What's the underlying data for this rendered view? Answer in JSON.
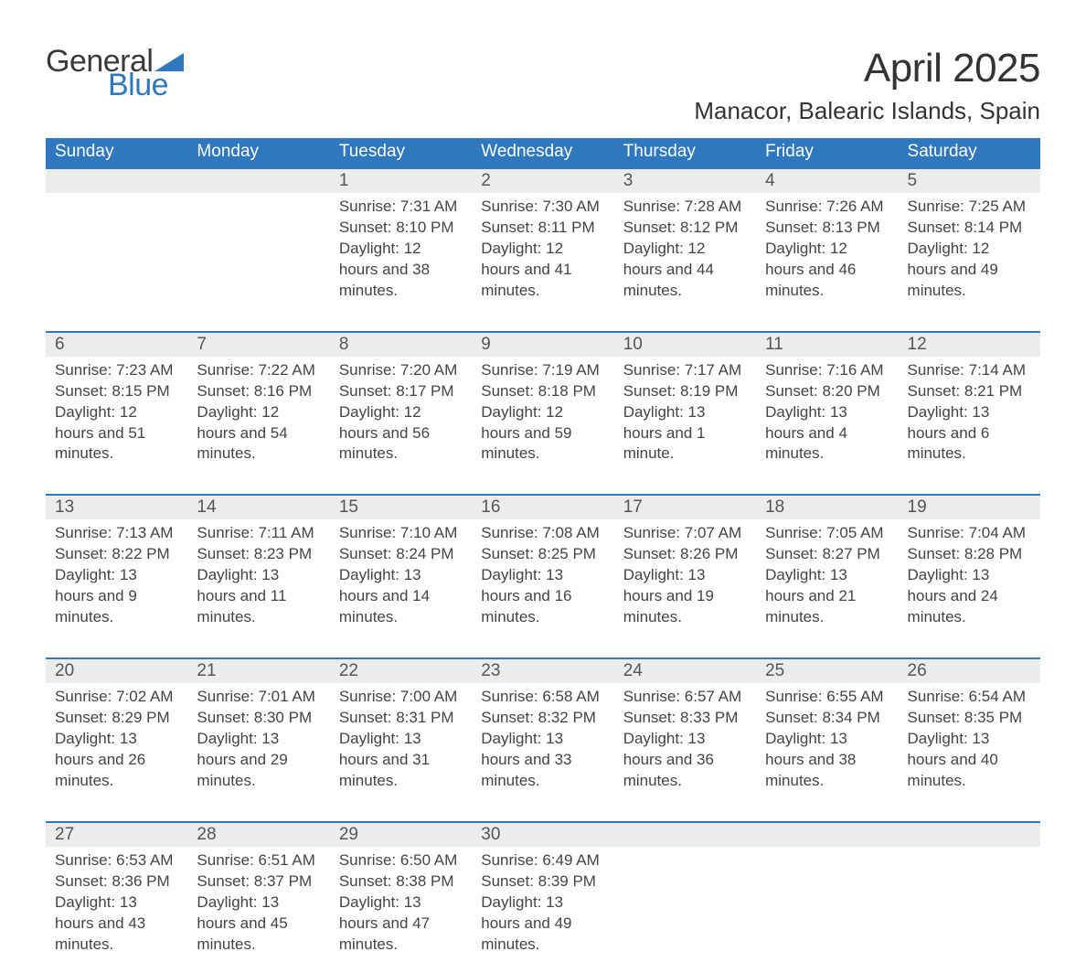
{
  "brand": {
    "word1": "General",
    "word2": "Blue",
    "color1": "#3a3a3a",
    "color2": "#2f78bf"
  },
  "title": "April 2025",
  "location": "Manacor, Balearic Islands, Spain",
  "theme": {
    "header_bg": "#2f78bf",
    "header_fg": "#ffffff",
    "daynum_bg": "#ececec",
    "row_border": "#2f78bf",
    "text_color": "#444444",
    "title_fontsize": 44,
    "location_fontsize": 26,
    "dayhead_fontsize": 19,
    "cell_fontsize": 17
  },
  "day_headers": [
    "Sunday",
    "Monday",
    "Tuesday",
    "Wednesday",
    "Thursday",
    "Friday",
    "Saturday"
  ],
  "weeks": [
    [
      null,
      null,
      {
        "n": "1",
        "sr": "7:31 AM",
        "ss": "8:10 PM",
        "dl": "12 hours and 38 minutes."
      },
      {
        "n": "2",
        "sr": "7:30 AM",
        "ss": "8:11 PM",
        "dl": "12 hours and 41 minutes."
      },
      {
        "n": "3",
        "sr": "7:28 AM",
        "ss": "8:12 PM",
        "dl": "12 hours and 44 minutes."
      },
      {
        "n": "4",
        "sr": "7:26 AM",
        "ss": "8:13 PM",
        "dl": "12 hours and 46 minutes."
      },
      {
        "n": "5",
        "sr": "7:25 AM",
        "ss": "8:14 PM",
        "dl": "12 hours and 49 minutes."
      }
    ],
    [
      {
        "n": "6",
        "sr": "7:23 AM",
        "ss": "8:15 PM",
        "dl": "12 hours and 51 minutes."
      },
      {
        "n": "7",
        "sr": "7:22 AM",
        "ss": "8:16 PM",
        "dl": "12 hours and 54 minutes."
      },
      {
        "n": "8",
        "sr": "7:20 AM",
        "ss": "8:17 PM",
        "dl": "12 hours and 56 minutes."
      },
      {
        "n": "9",
        "sr": "7:19 AM",
        "ss": "8:18 PM",
        "dl": "12 hours and 59 minutes."
      },
      {
        "n": "10",
        "sr": "7:17 AM",
        "ss": "8:19 PM",
        "dl": "13 hours and 1 minute."
      },
      {
        "n": "11",
        "sr": "7:16 AM",
        "ss": "8:20 PM",
        "dl": "13 hours and 4 minutes."
      },
      {
        "n": "12",
        "sr": "7:14 AM",
        "ss": "8:21 PM",
        "dl": "13 hours and 6 minutes."
      }
    ],
    [
      {
        "n": "13",
        "sr": "7:13 AM",
        "ss": "8:22 PM",
        "dl": "13 hours and 9 minutes."
      },
      {
        "n": "14",
        "sr": "7:11 AM",
        "ss": "8:23 PM",
        "dl": "13 hours and 11 minutes."
      },
      {
        "n": "15",
        "sr": "7:10 AM",
        "ss": "8:24 PM",
        "dl": "13 hours and 14 minutes."
      },
      {
        "n": "16",
        "sr": "7:08 AM",
        "ss": "8:25 PM",
        "dl": "13 hours and 16 minutes."
      },
      {
        "n": "17",
        "sr": "7:07 AM",
        "ss": "8:26 PM",
        "dl": "13 hours and 19 minutes."
      },
      {
        "n": "18",
        "sr": "7:05 AM",
        "ss": "8:27 PM",
        "dl": "13 hours and 21 minutes."
      },
      {
        "n": "19",
        "sr": "7:04 AM",
        "ss": "8:28 PM",
        "dl": "13 hours and 24 minutes."
      }
    ],
    [
      {
        "n": "20",
        "sr": "7:02 AM",
        "ss": "8:29 PM",
        "dl": "13 hours and 26 minutes."
      },
      {
        "n": "21",
        "sr": "7:01 AM",
        "ss": "8:30 PM",
        "dl": "13 hours and 29 minutes."
      },
      {
        "n": "22",
        "sr": "7:00 AM",
        "ss": "8:31 PM",
        "dl": "13 hours and 31 minutes."
      },
      {
        "n": "23",
        "sr": "6:58 AM",
        "ss": "8:32 PM",
        "dl": "13 hours and 33 minutes."
      },
      {
        "n": "24",
        "sr": "6:57 AM",
        "ss": "8:33 PM",
        "dl": "13 hours and 36 minutes."
      },
      {
        "n": "25",
        "sr": "6:55 AM",
        "ss": "8:34 PM",
        "dl": "13 hours and 38 minutes."
      },
      {
        "n": "26",
        "sr": "6:54 AM",
        "ss": "8:35 PM",
        "dl": "13 hours and 40 minutes."
      }
    ],
    [
      {
        "n": "27",
        "sr": "6:53 AM",
        "ss": "8:36 PM",
        "dl": "13 hours and 43 minutes."
      },
      {
        "n": "28",
        "sr": "6:51 AM",
        "ss": "8:37 PM",
        "dl": "13 hours and 45 minutes."
      },
      {
        "n": "29",
        "sr": "6:50 AM",
        "ss": "8:38 PM",
        "dl": "13 hours and 47 minutes."
      },
      {
        "n": "30",
        "sr": "6:49 AM",
        "ss": "8:39 PM",
        "dl": "13 hours and 49 minutes."
      },
      null,
      null,
      null
    ]
  ],
  "labels": {
    "sunrise": "Sunrise: ",
    "sunset": "Sunset: ",
    "daylight": "Daylight: "
  }
}
